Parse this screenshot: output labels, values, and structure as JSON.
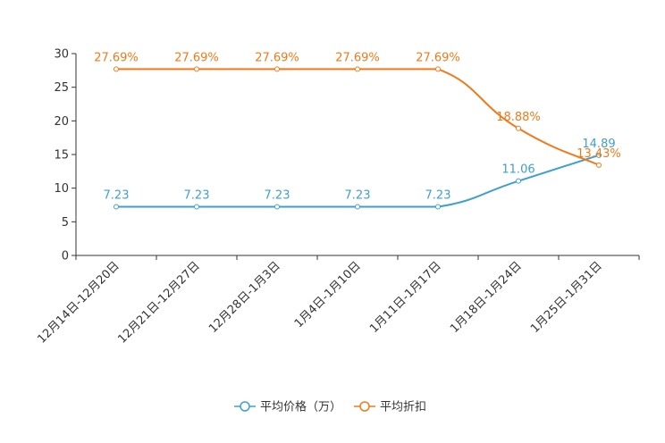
{
  "chart_data": {
    "type": "line",
    "categories": [
      "12月14日-12月20日",
      "12月21日-12月27日",
      "12月28日-1月3日",
      "1月4日-1月10日",
      "1月11日-1月17日",
      "1月18日-1月24日",
      "1月25日-1月31日"
    ],
    "series": [
      {
        "name": "平均价格（万）",
        "color": "#3f9fcf",
        "values": [
          7.23,
          7.23,
          7.23,
          7.23,
          7.23,
          11.06,
          14.89
        ],
        "labels": [
          "7.23",
          "7.23",
          "7.23",
          "7.23",
          "7.23",
          "11.06",
          "14.89"
        ]
      },
      {
        "name": "平均折扣",
        "color": "#f07a1a",
        "values": [
          27.69,
          27.69,
          27.69,
          27.69,
          27.69,
          18.88,
          13.43
        ],
        "labels": [
          "27.69%",
          "27.69%",
          "27.69%",
          "27.69%",
          "27.69%",
          "18.88%",
          "13.43%"
        ]
      }
    ],
    "ylim": [
      0,
      30
    ],
    "yticks": [
      0,
      5,
      10,
      15,
      20,
      25,
      30
    ],
    "title": "",
    "xlabel": "",
    "ylabel": "",
    "grid": false,
    "legend_position": "bottom-center",
    "smooth": true
  }
}
